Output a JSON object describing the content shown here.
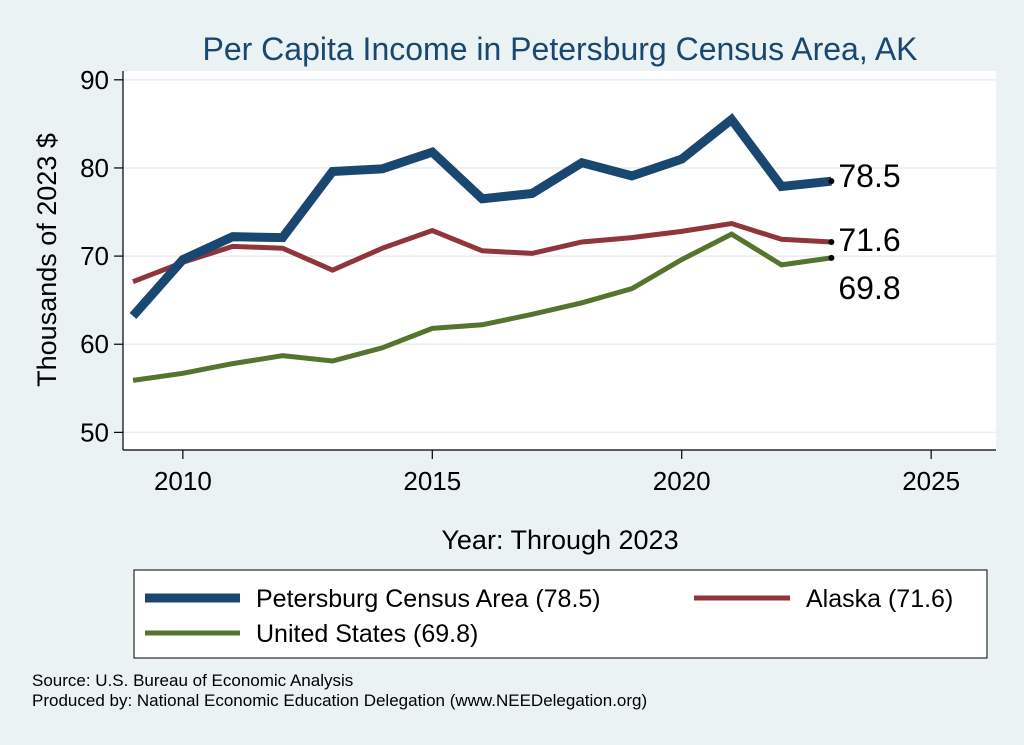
{
  "chart_data": {
    "type": "line",
    "title": "Per Capita Income in Petersburg Census Area, AK",
    "xlabel": "Year: Through 2023",
    "ylabel": "Thousands of 2023 $",
    "xlim": [
      2008.8,
      2026.3
    ],
    "ylim": [
      48,
      91
    ],
    "x_ticks": [
      2010,
      2015,
      2020,
      2025
    ],
    "y_ticks": [
      50,
      60,
      70,
      80,
      90
    ],
    "x": [
      2009,
      2010,
      2011,
      2012,
      2013,
      2014,
      2015,
      2016,
      2017,
      2018,
      2019,
      2020,
      2021,
      2022,
      2023
    ],
    "series": [
      {
        "name": "Petersburg Census Area",
        "legend": "Petersburg Census Area (78.5)",
        "color": "#1a476f",
        "end_label": "78.5",
        "values": [
          63.2,
          69.6,
          72.2,
          72.1,
          79.6,
          79.9,
          81.8,
          76.5,
          77.1,
          80.6,
          79.1,
          81.0,
          85.5,
          77.9,
          78.5
        ]
      },
      {
        "name": "Alaska",
        "legend": "Alaska (71.6)",
        "color": "#90353b",
        "end_label": "71.6",
        "values": [
          67.1,
          69.3,
          71.1,
          70.9,
          68.4,
          70.9,
          72.9,
          70.6,
          70.3,
          71.6,
          72.1,
          72.8,
          73.7,
          71.9,
          71.6
        ]
      },
      {
        "name": "United States",
        "legend": "United States (69.8)",
        "color": "#55752f",
        "end_label": "69.8",
        "values": [
          55.9,
          56.7,
          57.8,
          58.7,
          58.1,
          59.6,
          61.8,
          62.2,
          63.4,
          64.7,
          66.3,
          69.6,
          72.5,
          69.0,
          69.8
        ]
      }
    ]
  },
  "footer": {
    "source": "Source: U.S. Bureau of Economic Analysis",
    "produced": "Produced by: National Economic Education Delegation (www.NEEDelegation.org)"
  }
}
